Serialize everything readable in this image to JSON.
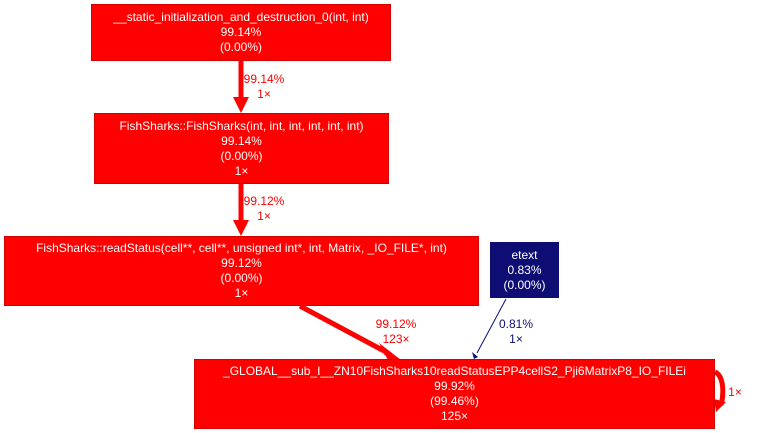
{
  "colors": {
    "hot": "#ff0000",
    "cold": "#0d0d73",
    "text_on_node": "#ffffff"
  },
  "nodes": {
    "static_init": {
      "name": "__static_initialization_and_destruction_0(int, int)",
      "total": "99.14%",
      "self": "(0.00%)"
    },
    "fishsharks_ctor": {
      "name": "FishSharks::FishSharks(int, int, int, int, int, int)",
      "total": "99.14%",
      "self": "(0.00%)",
      "calls": "1×"
    },
    "read_status": {
      "name": "FishSharks::readStatus(cell**, cell**, unsigned int*, int, Matrix, _IO_FILE*, int)",
      "total": "99.12%",
      "self": "(0.00%)",
      "calls": "1×"
    },
    "etext": {
      "name": "etext",
      "total": "0.83%",
      "self": "(0.00%)"
    },
    "global_sub": {
      "name": "_GLOBAL__sub_I__ZN10FishSharks10readStatusEPP4cellS2_Pji6MatrixP8_IO_FILEi",
      "total": "99.92%",
      "self": "(99.46%)",
      "calls": "125×"
    }
  },
  "edges": {
    "static_to_ctor": {
      "percent": "99.14%",
      "calls": "1×",
      "weight": 99.14
    },
    "ctor_to_read": {
      "percent": "99.12%",
      "calls": "1×",
      "weight": 99.12
    },
    "read_to_global": {
      "percent": "99.12%",
      "calls": "123×",
      "weight": 99.12
    },
    "etext_to_global": {
      "percent": "0.81%",
      "calls": "1×",
      "weight": 0.81
    },
    "global_self_loop": {
      "calls": "1×"
    }
  }
}
